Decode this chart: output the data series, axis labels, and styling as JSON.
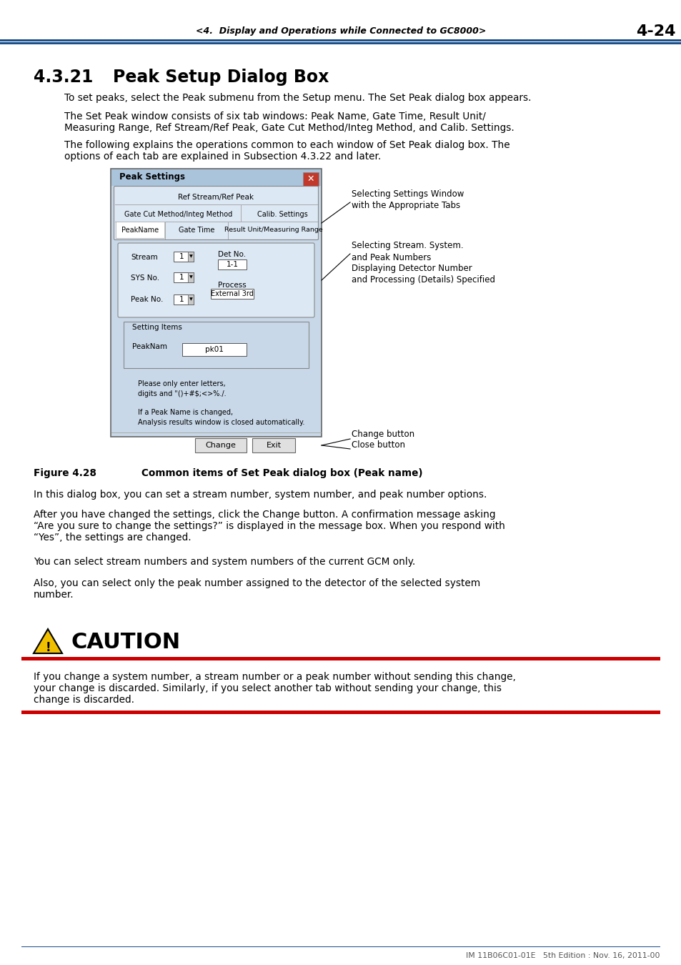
{
  "page_header_text": "<4.  Display and Operations while Connected to GC8000>",
  "page_number": "4-24",
  "section_number": "4.3.21",
  "section_title": "Peak Setup Dialog Box",
  "body_para1": "To set peaks, select the Peak submenu from the Setup menu. The Set Peak dialog box appears.",
  "body_para2": "The Set Peak window consists of six tab windows: Peak Name, Gate Time, Result Unit/\nMeasuring Range, Ref Stream/Ref Peak, Gate Cut Method/Integ Method, and Calib. Settings.",
  "body_para3": "The following explains the operations common to each window of Set Peak dialog box. The\noptions of each tab are explained in Subsection 4.3.22 and later.",
  "figure_caption_bold": "Figure 4.28",
  "figure_caption_rest": "        Common items of Set Peak dialog box (Peak name)",
  "annotation1_line1": "Selecting Settings Window",
  "annotation1_line2": "with the Appropriate Tabs",
  "annotation2_line1": "Selecting Stream. System.",
  "annotation2_line2": "and Peak Numbers",
  "annotation2_line3": "Displaying Detector Number",
  "annotation2_line4": "and Processing (Details) Specified",
  "annotation3": "Change button",
  "annotation4": "Close button",
  "body2_para1": "In this dialog box, you can set a stream number, system number, and peak number options.",
  "body2_para2": "After you have changed the settings, click the Change button. A confirmation message asking\n“Are you sure to change the settings?” is displayed in the message box. When you respond with\n“Yes”, the settings are changed.",
  "body2_para3": "You can select stream numbers and system numbers of the current GCM only.",
  "body2_para4": "Also, you can select only the peak number assigned to the detector of the selected system\nnumber.",
  "caution_title": "CAUTION",
  "caution_text": "If you change a system number, a stream number or a peak number without sending this change,\nyour change is discarded. Similarly, if you select another tab without sending your change, this\nchange is discarded.",
  "footer_text": "IM 11B06C01-01E   5th Edition : Nov. 16, 2011-00",
  "blue_color": "#1a4f8a",
  "red_color": "#cc0000",
  "dialog_bg": "#c8d8e8",
  "dialog_inner_bg": "#dce8f4",
  "tab_active_bg": "#ffffff",
  "tab_bg": "#dce8f4",
  "field_bg": "#ffffff",
  "button_bg": "#e0e0e0",
  "note_text1": "Please only enter letters,",
  "note_text2": "digits and \"()+#$;<>%./.",
  "note_text3": "If a Peak Name is changed,",
  "note_text4": "Analysis results window is closed automatically."
}
